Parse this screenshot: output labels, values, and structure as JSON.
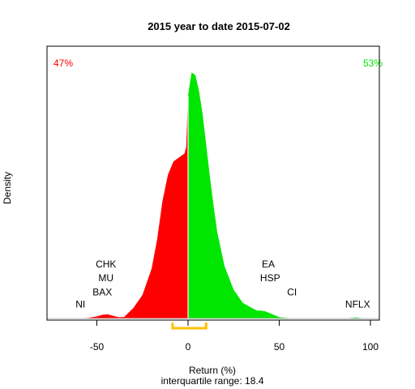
{
  "colors": {
    "negative": "#ff0000",
    "positive": "#00e600",
    "baseline": "#bebebe",
    "iqr": "#ffc000",
    "axis": "#000000"
  },
  "chart_data": {
    "type": "area",
    "title": "2015  year to date 2015-07-02",
    "xlabel": "Return (%)",
    "ylabel": "Density",
    "subtitle": "interquartile range: 18.4",
    "xlim": [
      -80,
      105
    ],
    "xticks": [
      -50,
      0,
      50,
      100
    ],
    "negative_share_label": "47%",
    "positive_share_label": "53%",
    "iqr": [
      -8.5,
      9.9
    ],
    "density": {
      "x": [
        -70,
        -65,
        -60,
        -55,
        -50,
        -47,
        -44,
        -41,
        -38,
        -35,
        -30,
        -25,
        -20,
        -17,
        -14,
        -11,
        -8,
        -6,
        -4,
        -2,
        -1,
        0,
        1,
        2,
        4,
        6,
        8,
        10,
        12,
        14,
        16,
        20,
        25,
        30,
        35,
        38,
        40,
        42,
        45,
        50,
        55,
        60,
        65,
        70,
        80,
        88,
        92,
        96,
        100
      ],
      "y": [
        0.0,
        0.0003,
        0.001,
        0.002,
        0.008,
        0.014,
        0.016,
        0.01,
        0.005,
        0.006,
        0.04,
        0.09,
        0.19,
        0.3,
        0.45,
        0.55,
        0.6,
        0.61,
        0.62,
        0.63,
        0.655,
        0.85,
        0.9,
        0.94,
        0.93,
        0.87,
        0.78,
        0.66,
        0.54,
        0.43,
        0.33,
        0.2,
        0.11,
        0.06,
        0.04,
        0.03,
        0.03,
        0.028,
        0.02,
        0.005,
        0.0015,
        0.0004,
        0.0001,
        0.0,
        0.0,
        0.0015,
        0.004,
        0.001,
        0.0
      ]
    },
    "ylim": [
      0,
      1.0
    ],
    "stock_labels": [
      {
        "text": "CHK",
        "x": -45,
        "y": 0.195
      },
      {
        "text": "MU",
        "x": -45,
        "y": 0.142
      },
      {
        "text": "BAX",
        "x": -47,
        "y": 0.089
      },
      {
        "text": "NI",
        "x": -59,
        "y": 0.042
      },
      {
        "text": "EA",
        "x": 44,
        "y": 0.195
      },
      {
        "text": "HSP",
        "x": 45,
        "y": 0.142
      },
      {
        "text": "CI",
        "x": 57,
        "y": 0.089
      },
      {
        "text": "NFLX",
        "x": 93,
        "y": 0.042
      }
    ]
  }
}
